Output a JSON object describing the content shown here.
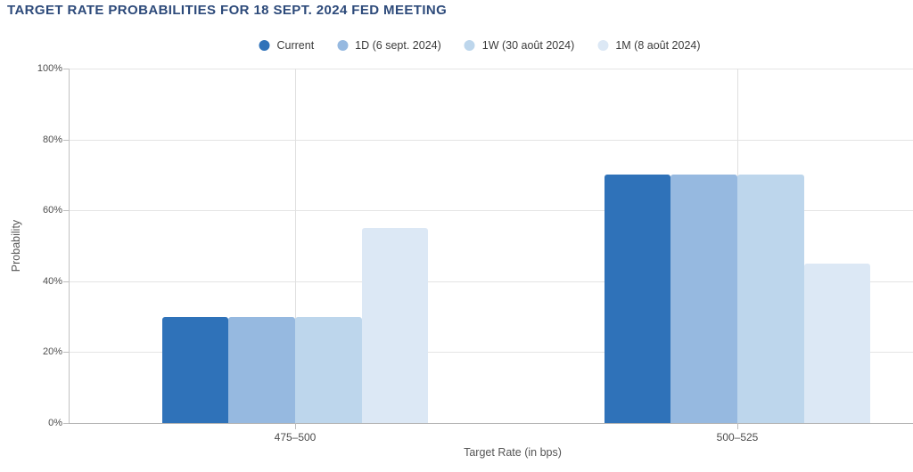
{
  "title": "TARGET RATE PROBABILITIES FOR 18 SEPT. 2024 FED MEETING",
  "colors": {
    "title": "#2d4a7a",
    "series_current": "#2f72b9",
    "series_1d": "#96b9e0",
    "series_1w": "#bdd6ec",
    "series_1m": "#dce8f5",
    "gridline": "#e4e4e4",
    "axis_text": "#4d4d4d"
  },
  "chart_data": {
    "type": "bar",
    "title": "TARGET RATE PROBABILITIES FOR 18 SEPT. 2024 FED MEETING",
    "categories": [
      "475–500",
      "500–525"
    ],
    "series": [
      {
        "name": "Current",
        "color": "#2f72b9",
        "values": [
          30,
          70
        ]
      },
      {
        "name": "1D (6 sept. 2024)",
        "color": "#96b9e0",
        "values": [
          30,
          70
        ]
      },
      {
        "name": "1W (30 août 2024)",
        "color": "#bdd6ec",
        "values": [
          30,
          70
        ]
      },
      {
        "name": "1M (8 août 2024)",
        "color": "#dce8f5",
        "values": [
          55,
          45
        ]
      }
    ],
    "xlabel": "Target Rate (in bps)",
    "ylabel": "Probability",
    "ylim": [
      0,
      100
    ],
    "yticks": [
      0,
      20,
      40,
      60,
      80,
      100
    ],
    "ytick_labels": [
      "0%",
      "20%",
      "40%",
      "60%",
      "80%",
      "100%"
    ],
    "legend_position": "top",
    "grid": true
  }
}
